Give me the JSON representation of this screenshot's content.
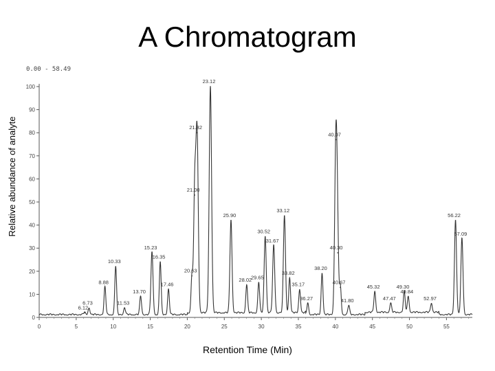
{
  "title": "A Chromatogram",
  "range_label": "0.00 - 58.49",
  "chart_data": {
    "type": "line",
    "title": "A Chromatogram",
    "xlabel": "Retention Time (Min)",
    "ylabel": "Relative abundance of analyte",
    "xlim": [
      0,
      58.49
    ],
    "ylim": [
      0,
      100
    ],
    "x_ticks": [
      0,
      5,
      10,
      15,
      20,
      25,
      30,
      35,
      40,
      45,
      50,
      55
    ],
    "y_ticks": [
      0,
      10,
      20,
      30,
      40,
      50,
      60,
      70,
      80,
      90,
      100
    ],
    "grid": false,
    "peaks": [
      {
        "label": "6.12",
        "x": 6.12,
        "y": 2
      },
      {
        "label": "6.73",
        "x": 6.73,
        "y": 4
      },
      {
        "label": "8.88",
        "x": 8.88,
        "y": 13
      },
      {
        "label": "10.33",
        "x": 10.33,
        "y": 22
      },
      {
        "label": "11.53",
        "x": 11.53,
        "y": 4
      },
      {
        "label": "13.70",
        "x": 13.7,
        "y": 9
      },
      {
        "label": "15.23",
        "x": 15.23,
        "y": 28
      },
      {
        "label": "16.35",
        "x": 16.35,
        "y": 24
      },
      {
        "label": "17.46",
        "x": 17.46,
        "y": 12
      },
      {
        "label": "20.63",
        "x": 20.63,
        "y": 18
      },
      {
        "label": "21.00",
        "x": 21.0,
        "y": 53
      },
      {
        "label": "21.32",
        "x": 21.32,
        "y": 80
      },
      {
        "label": "23.12",
        "x": 23.12,
        "y": 100
      },
      {
        "label": "25.90",
        "x": 25.9,
        "y": 42
      },
      {
        "label": "28.02",
        "x": 28.02,
        "y": 14
      },
      {
        "label": "29.65",
        "x": 29.65,
        "y": 15
      },
      {
        "label": "30.52",
        "x": 30.52,
        "y": 35
      },
      {
        "label": "31.67",
        "x": 31.67,
        "y": 31
      },
      {
        "label": "33.12",
        "x": 33.12,
        "y": 44
      },
      {
        "label": "33.82",
        "x": 33.82,
        "y": 17
      },
      {
        "label": "35.17",
        "x": 35.17,
        "y": 12
      },
      {
        "label": "36.27",
        "x": 36.27,
        "y": 6
      },
      {
        "label": "38.20",
        "x": 38.2,
        "y": 19
      },
      {
        "label": "40.07",
        "x": 40.07,
        "y": 77
      },
      {
        "label": "40.30",
        "x": 40.3,
        "y": 28
      },
      {
        "label": "40.67",
        "x": 40.67,
        "y": 13
      },
      {
        "label": "41.80",
        "x": 41.8,
        "y": 5
      },
      {
        "label": "45.32",
        "x": 45.32,
        "y": 11
      },
      {
        "label": "47.47",
        "x": 47.47,
        "y": 6
      },
      {
        "label": "49.30",
        "x": 49.3,
        "y": 11
      },
      {
        "label": "49.84",
        "x": 49.84,
        "y": 9
      },
      {
        "label": "52.97",
        "x": 52.97,
        "y": 6
      },
      {
        "label": "56.22",
        "x": 56.22,
        "y": 42
      },
      {
        "label": "57.09",
        "x": 57.09,
        "y": 34
      }
    ]
  }
}
